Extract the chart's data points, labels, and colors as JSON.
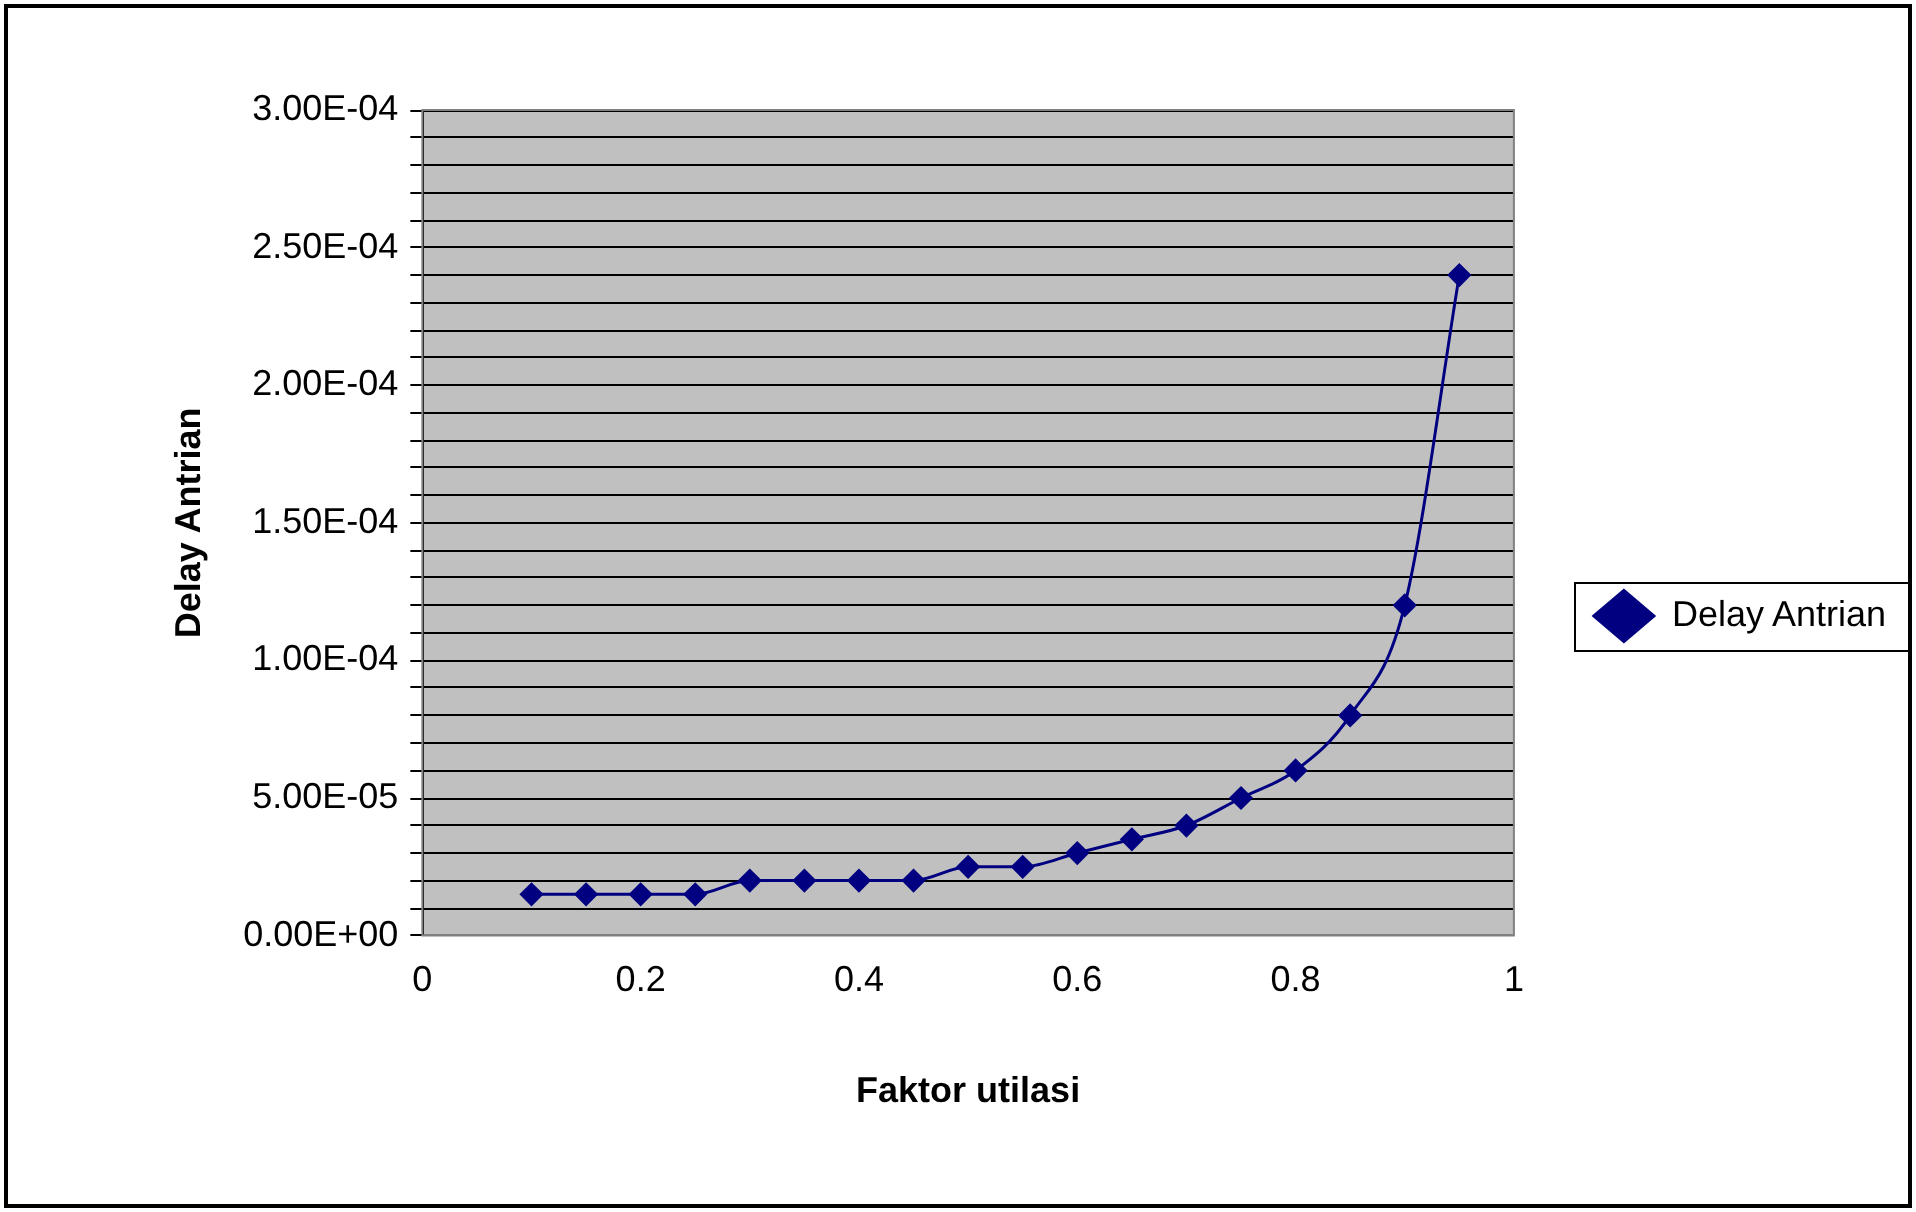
{
  "chart_data": {
    "type": "line",
    "xlabel": "Faktor utilasi",
    "ylabel": "Delay Antrian",
    "x": [
      0.1,
      0.15,
      0.2,
      0.25,
      0.3,
      0.35,
      0.4,
      0.45,
      0.5,
      0.55,
      0.6,
      0.65,
      0.7,
      0.75,
      0.8,
      0.85,
      0.9,
      0.95
    ],
    "series": [
      {
        "name": "Delay Antrian",
        "color": "#000080",
        "values": [
          1.5e-05,
          1.5e-05,
          1.5e-05,
          1.5e-05,
          2e-05,
          2e-05,
          2e-05,
          2e-05,
          2.5e-05,
          2.5e-05,
          3e-05,
          3.5e-05,
          4e-05,
          5e-05,
          6e-05,
          8e-05,
          0.00012,
          0.00024
        ]
      }
    ],
    "xlim": [
      0,
      1
    ],
    "xticks": [
      0,
      0.2,
      0.4,
      0.6,
      0.8,
      1
    ],
    "ylim": [
      0,
      0.0003
    ],
    "yticks": [
      {
        "value": 0,
        "label": "0.00E+00"
      },
      {
        "value": 1e-05,
        "label": null
      },
      {
        "value": 2e-05,
        "label": null
      },
      {
        "value": 3e-05,
        "label": null
      },
      {
        "value": 4e-05,
        "label": null
      },
      {
        "value": 5e-05,
        "label": "5.00E-05"
      },
      {
        "value": 6e-05,
        "label": null
      },
      {
        "value": 7e-05,
        "label": null
      },
      {
        "value": 8e-05,
        "label": null
      },
      {
        "value": 9e-05,
        "label": null
      },
      {
        "value": 0.0001,
        "label": "1.00E-04"
      },
      {
        "value": 0.00011,
        "label": null
      },
      {
        "value": 0.00012,
        "label": null
      },
      {
        "value": 0.00013,
        "label": null
      },
      {
        "value": 0.00014,
        "label": null
      },
      {
        "value": 0.00015,
        "label": "1.50E-04"
      },
      {
        "value": 0.00016,
        "label": null
      },
      {
        "value": 0.00017,
        "label": null
      },
      {
        "value": 0.00018,
        "label": null
      },
      {
        "value": 0.00019,
        "label": null
      },
      {
        "value": 0.0002,
        "label": "2.00E-04"
      },
      {
        "value": 0.00021,
        "label": null
      },
      {
        "value": 0.00022,
        "label": null
      },
      {
        "value": 0.00023,
        "label": null
      },
      {
        "value": 0.00024,
        "label": null
      },
      {
        "value": 0.00025,
        "label": "2.50E-04"
      },
      {
        "value": 0.00026,
        "label": null
      },
      {
        "value": 0.00027,
        "label": null
      },
      {
        "value": 0.00028,
        "label": null
      },
      {
        "value": 0.00029,
        "label": null
      },
      {
        "value": 0.0003,
        "label": "3.00E-04"
      }
    ],
    "grid": "y",
    "legend": "right",
    "marker": "diamond",
    "line_style": "solid"
  }
}
